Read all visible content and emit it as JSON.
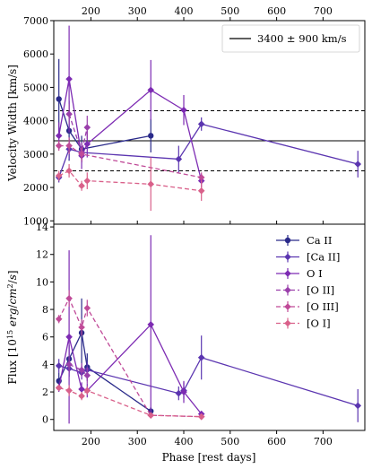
{
  "legend_top": {
    "label": "3400 ± 900 km/s"
  },
  "chart_data": [
    {
      "type": "scatter",
      "panel": "top",
      "ylabel": "Velocity Width [km/s]",
      "xlabel": "",
      "xlim": [
        120,
        790
      ],
      "ylim": [
        900,
        7000
      ],
      "yticks": [
        1000,
        2000,
        3000,
        4000,
        5000,
        6000,
        7000
      ],
      "top_xticks": [
        200,
        300,
        400,
        500,
        600,
        700
      ],
      "reference_lines": [
        {
          "y": 3400,
          "style": "solid",
          "label": "3400 ± 900 km/s"
        },
        {
          "y": 4300,
          "style": "dashed"
        },
        {
          "y": 2500,
          "style": "dashed"
        }
      ],
      "series": [
        {
          "name": "Ca II",
          "color": "#2a2a8a",
          "linestyle": "solid",
          "marker": "circle",
          "x": [
            131,
            153,
            180,
            329
          ],
          "y": [
            4650,
            3700,
            3150,
            3550
          ],
          "err": [
            1200,
            900,
            400,
            500
          ]
        },
        {
          "name": "[Ca II]",
          "color": "#5b35b0",
          "linestyle": "solid",
          "marker": "diamond",
          "x": [
            131,
            153,
            180,
            389,
            438,
            775
          ],
          "y": [
            2300,
            3150,
            3050,
            2850,
            3900,
            2700
          ],
          "err": [
            150,
            300,
            250,
            400,
            200,
            400
          ]
        },
        {
          "name": "O I",
          "color": "#7d2bb3",
          "linestyle": "solid",
          "marker": "diamond",
          "x": [
            131,
            153,
            180,
            192,
            329,
            400,
            438
          ],
          "y": [
            3550,
            5250,
            2950,
            3300,
            4920,
            4320,
            2200
          ],
          "err": [
            400,
            1600,
            400,
            400,
            900,
            450,
            200
          ]
        },
        {
          "name": "[O II]",
          "color": "#9a3fab",
          "linestyle": "dashed",
          "marker": "diamond",
          "x": [
            153,
            180,
            192
          ],
          "y": [
            4200,
            3050,
            3800
          ],
          "err": [
            300,
            300,
            350
          ]
        },
        {
          "name": "[O III]",
          "color": "#c04a98",
          "linestyle": "dashed",
          "marker": "diamond",
          "x": [
            131,
            153,
            180,
            438
          ],
          "y": [
            3250,
            3250,
            3000,
            2300
          ],
          "err": [
            150,
            250,
            200,
            150
          ]
        },
        {
          "name": "[O I]",
          "color": "#d9608a",
          "linestyle": "dashed",
          "marker": "diamond",
          "x": [
            131,
            153,
            180,
            192,
            329,
            438
          ],
          "y": [
            2350,
            2500,
            2050,
            2200,
            2100,
            1900
          ],
          "err": [
            150,
            200,
            150,
            250,
            800,
            300
          ]
        }
      ]
    },
    {
      "type": "scatter",
      "panel": "bottom",
      "ylabel": "Flux [10^15 erg/cm^2/s]",
      "xlabel": "Phase [rest days]",
      "xlim": [
        120,
        790
      ],
      "ylim": [
        -0.8,
        14.2
      ],
      "yticks": [
        0,
        2,
        4,
        6,
        8,
        10,
        12,
        14
      ],
      "xticks": [
        200,
        300,
        400,
        500,
        600,
        700
      ],
      "legend": [
        "Ca II",
        "[Ca II]",
        "O I",
        "[O II]",
        "[O III]",
        "[O I]"
      ],
      "legend_position": "top-right",
      "series": [
        {
          "name": "Ca II",
          "color": "#2a2a8a",
          "linestyle": "solid",
          "marker": "circle",
          "x": [
            131,
            153,
            180,
            192,
            329
          ],
          "y": [
            2.8,
            4.4,
            6.3,
            3.8,
            0.6
          ],
          "err": [
            0.6,
            1.0,
            2.5,
            1.0,
            0.3
          ]
        },
        {
          "name": "[Ca II]",
          "color": "#5b35b0",
          "linestyle": "solid",
          "marker": "diamond",
          "x": [
            131,
            153,
            180,
            192,
            389,
            400,
            438,
            775
          ],
          "y": [
            3.9,
            3.7,
            3.4,
            3.6,
            1.9,
            2.1,
            4.5,
            1.0
          ],
          "err": [
            0.5,
            0.6,
            0.5,
            0.6,
            0.5,
            0.6,
            1.6,
            1.2
          ]
        },
        {
          "name": "O I",
          "color": "#7d2bb3",
          "linestyle": "solid",
          "marker": "diamond",
          "x": [
            131,
            153,
            180,
            192,
            329,
            400,
            438
          ],
          "y": [
            2.3,
            6.0,
            2.2,
            2.1,
            6.9,
            2.0,
            0.4
          ],
          "err": [
            0.3,
            6.3,
            0.5,
            0.5,
            6.5,
            0.8,
            0.2
          ]
        },
        {
          "name": "[O II]",
          "color": "#9a3fab",
          "linestyle": "dashed",
          "marker": "diamond",
          "x": [
            153,
            180,
            192
          ],
          "y": [
            4.0,
            3.6,
            3.2
          ],
          "err": [
            0.6,
            0.5,
            0.6
          ]
        },
        {
          "name": "[O III]",
          "color": "#c04a98",
          "linestyle": "dashed",
          "marker": "diamond",
          "x": [
            131,
            153,
            180,
            192,
            329,
            438
          ],
          "y": [
            7.3,
            8.8,
            6.7,
            8.1,
            0.3,
            0.2
          ],
          "err": [
            0.3,
            0.6,
            0.6,
            0.6,
            0.2,
            0.15
          ]
        },
        {
          "name": "[O I]",
          "color": "#d9608a",
          "linestyle": "dashed",
          "marker": "diamond",
          "x": [
            131,
            153,
            180,
            192,
            329,
            438
          ],
          "y": [
            2.3,
            2.1,
            1.7,
            2.1,
            0.3,
            0.2
          ],
          "err": [
            0.2,
            0.4,
            0.3,
            0.3,
            0.15,
            0.1
          ]
        }
      ]
    }
  ]
}
